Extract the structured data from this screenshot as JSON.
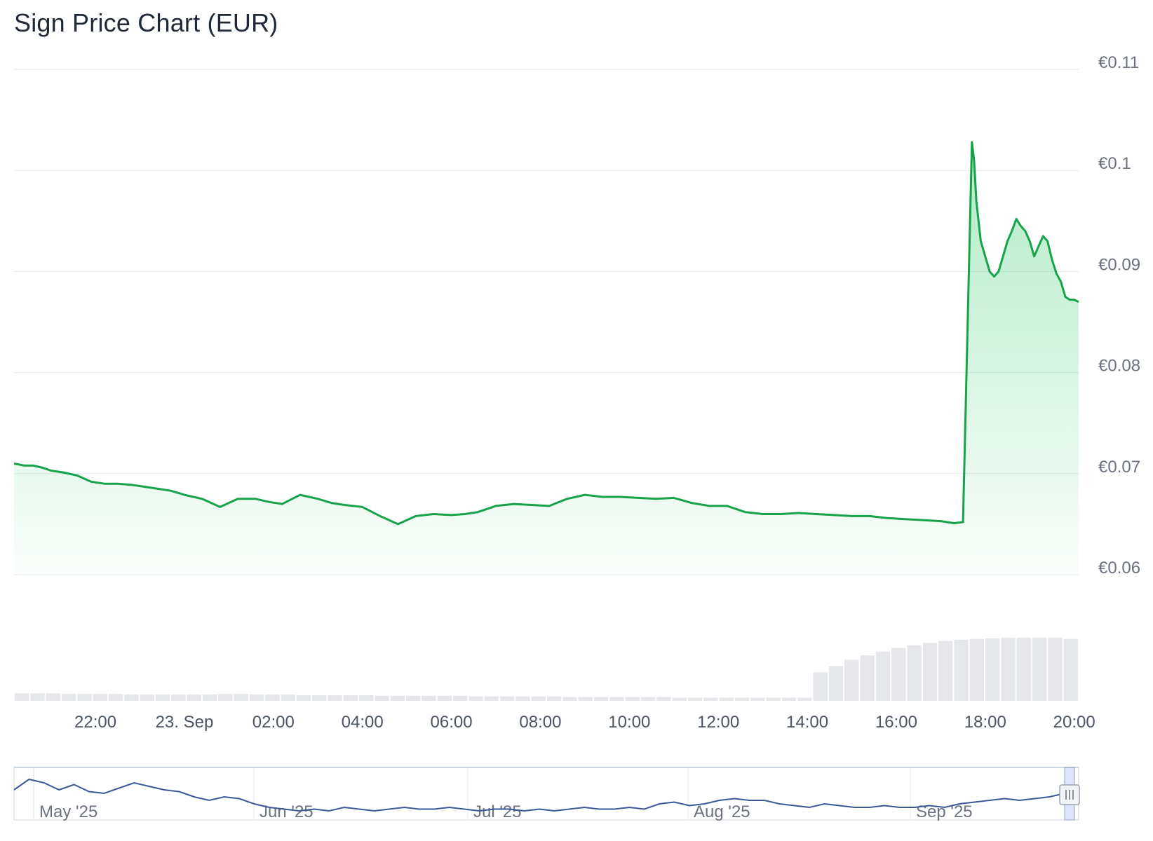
{
  "chart_data": {
    "type": "area",
    "title": "Sign Price Chart (EUR)",
    "currency_symbol": "€",
    "line_color": "#16a34a",
    "fill_color": "#22c55e",
    "volume_color": "#e5e7eb",
    "navigator_color": "#3b5998",
    "grid": true,
    "ylim": [
      0.06,
      0.11
    ],
    "yticks": [
      "€0.11",
      "€0.1",
      "€0.09",
      "€0.08",
      "€0.07",
      "€0.06"
    ],
    "ytick_values": [
      0.11,
      0.1,
      0.09,
      0.08,
      0.07,
      0.06
    ],
    "xlim": [
      "22 Sep 20:10",
      "23 Sep 20:10"
    ],
    "xtick_labels": [
      "22:00",
      "23. Sep",
      "02:00",
      "04:00",
      "06:00",
      "08:00",
      "10:00",
      "12:00",
      "14:00",
      "16:00",
      "18:00",
      "20:00"
    ],
    "xtick_hours": [
      22,
      24,
      26,
      28,
      30,
      32,
      34,
      36,
      38,
      40,
      42,
      44
    ],
    "series": [
      {
        "x": [
          20.17,
          20.4,
          20.6,
          20.8,
          21.0,
          21.3,
          21.6,
          21.9,
          22.2,
          22.5,
          22.8,
          23.1,
          23.4,
          23.7,
          24.0,
          24.4,
          24.8,
          25.2,
          25.6,
          25.9,
          26.2,
          26.6,
          27.0,
          27.3,
          27.6,
          28.0,
          28.4,
          28.8,
          29.2,
          29.6,
          30.0,
          30.3,
          30.6,
          31.0,
          31.4,
          31.8,
          32.2,
          32.6,
          33.0,
          33.4,
          33.8,
          34.2,
          34.6,
          35.0,
          35.4,
          35.8,
          36.2,
          36.6,
          37.0,
          37.4,
          37.8,
          38.2,
          38.6,
          39.0,
          39.4,
          39.8,
          40.2,
          40.6,
          41.0,
          41.3,
          41.5,
          41.7,
          41.75,
          41.8,
          41.9,
          42.0,
          42.1,
          42.2,
          42.3,
          42.4,
          42.5,
          42.6,
          42.7,
          42.8,
          42.9,
          43.0,
          43.1,
          43.2,
          43.3,
          43.4,
          43.5,
          43.6,
          43.7,
          43.8,
          43.9,
          44.0,
          44.1
        ],
        "y": [
          0.071,
          0.0708,
          0.0708,
          0.0706,
          0.0703,
          0.0701,
          0.0698,
          0.0692,
          0.069,
          0.069,
          0.0689,
          0.0687,
          0.0685,
          0.0683,
          0.0679,
          0.0675,
          0.0667,
          0.0675,
          0.0675,
          0.0672,
          0.067,
          0.0679,
          0.0675,
          0.0671,
          0.0669,
          0.0667,
          0.0658,
          0.065,
          0.0658,
          0.066,
          0.0659,
          0.066,
          0.0662,
          0.0668,
          0.067,
          0.0669,
          0.0668,
          0.0675,
          0.0679,
          0.0677,
          0.0677,
          0.0676,
          0.0675,
          0.0676,
          0.0671,
          0.0668,
          0.0668,
          0.0662,
          0.066,
          0.066,
          0.0661,
          0.066,
          0.0659,
          0.0658,
          0.0658,
          0.0656,
          0.0655,
          0.0654,
          0.0653,
          0.0651,
          0.0652,
          0.1028,
          0.101,
          0.097,
          0.093,
          0.0915,
          0.09,
          0.0895,
          0.09,
          0.0915,
          0.093,
          0.094,
          0.0952,
          0.0945,
          0.094,
          0.093,
          0.0915,
          0.0925,
          0.0935,
          0.093,
          0.0912,
          0.0898,
          0.089,
          0.0875,
          0.0872,
          0.0872,
          0.087
        ]
      }
    ],
    "volume": [
      0.12,
      0.12,
      0.12,
      0.11,
      0.11,
      0.11,
      0.11,
      0.1,
      0.1,
      0.1,
      0.1,
      0.1,
      0.1,
      0.11,
      0.11,
      0.1,
      0.1,
      0.1,
      0.09,
      0.09,
      0.09,
      0.09,
      0.09,
      0.08,
      0.08,
      0.08,
      0.08,
      0.08,
      0.08,
      0.07,
      0.07,
      0.07,
      0.07,
      0.07,
      0.07,
      0.06,
      0.06,
      0.06,
      0.06,
      0.06,
      0.06,
      0.06,
      0.05,
      0.05,
      0.05,
      0.05,
      0.05,
      0.05,
      0.05,
      0.05,
      0.05,
      0.45,
      0.55,
      0.65,
      0.72,
      0.78,
      0.84,
      0.88,
      0.92,
      0.95,
      0.97,
      0.98,
      0.99,
      1.0,
      1.0,
      1.0,
      1.0,
      0.98
    ],
    "navigator": {
      "labels": [
        "May '25",
        "Jun '25",
        "Jul '25",
        "Aug '25",
        "Sep '25"
      ],
      "values": [
        0.74,
        0.8,
        0.78,
        0.74,
        0.77,
        0.73,
        0.72,
        0.75,
        0.78,
        0.76,
        0.74,
        0.73,
        0.7,
        0.68,
        0.7,
        0.69,
        0.66,
        0.64,
        0.63,
        0.62,
        0.63,
        0.62,
        0.64,
        0.63,
        0.62,
        0.63,
        0.64,
        0.63,
        0.63,
        0.64,
        0.63,
        0.62,
        0.63,
        0.63,
        0.62,
        0.63,
        0.62,
        0.63,
        0.64,
        0.63,
        0.63,
        0.64,
        0.63,
        0.66,
        0.67,
        0.65,
        0.66,
        0.68,
        0.69,
        0.68,
        0.68,
        0.66,
        0.65,
        0.64,
        0.66,
        0.65,
        0.64,
        0.64,
        0.65,
        0.64,
        0.64,
        0.65,
        0.64,
        0.66,
        0.67,
        0.68,
        0.69,
        0.68,
        0.69,
        0.7,
        0.72
      ]
    }
  }
}
